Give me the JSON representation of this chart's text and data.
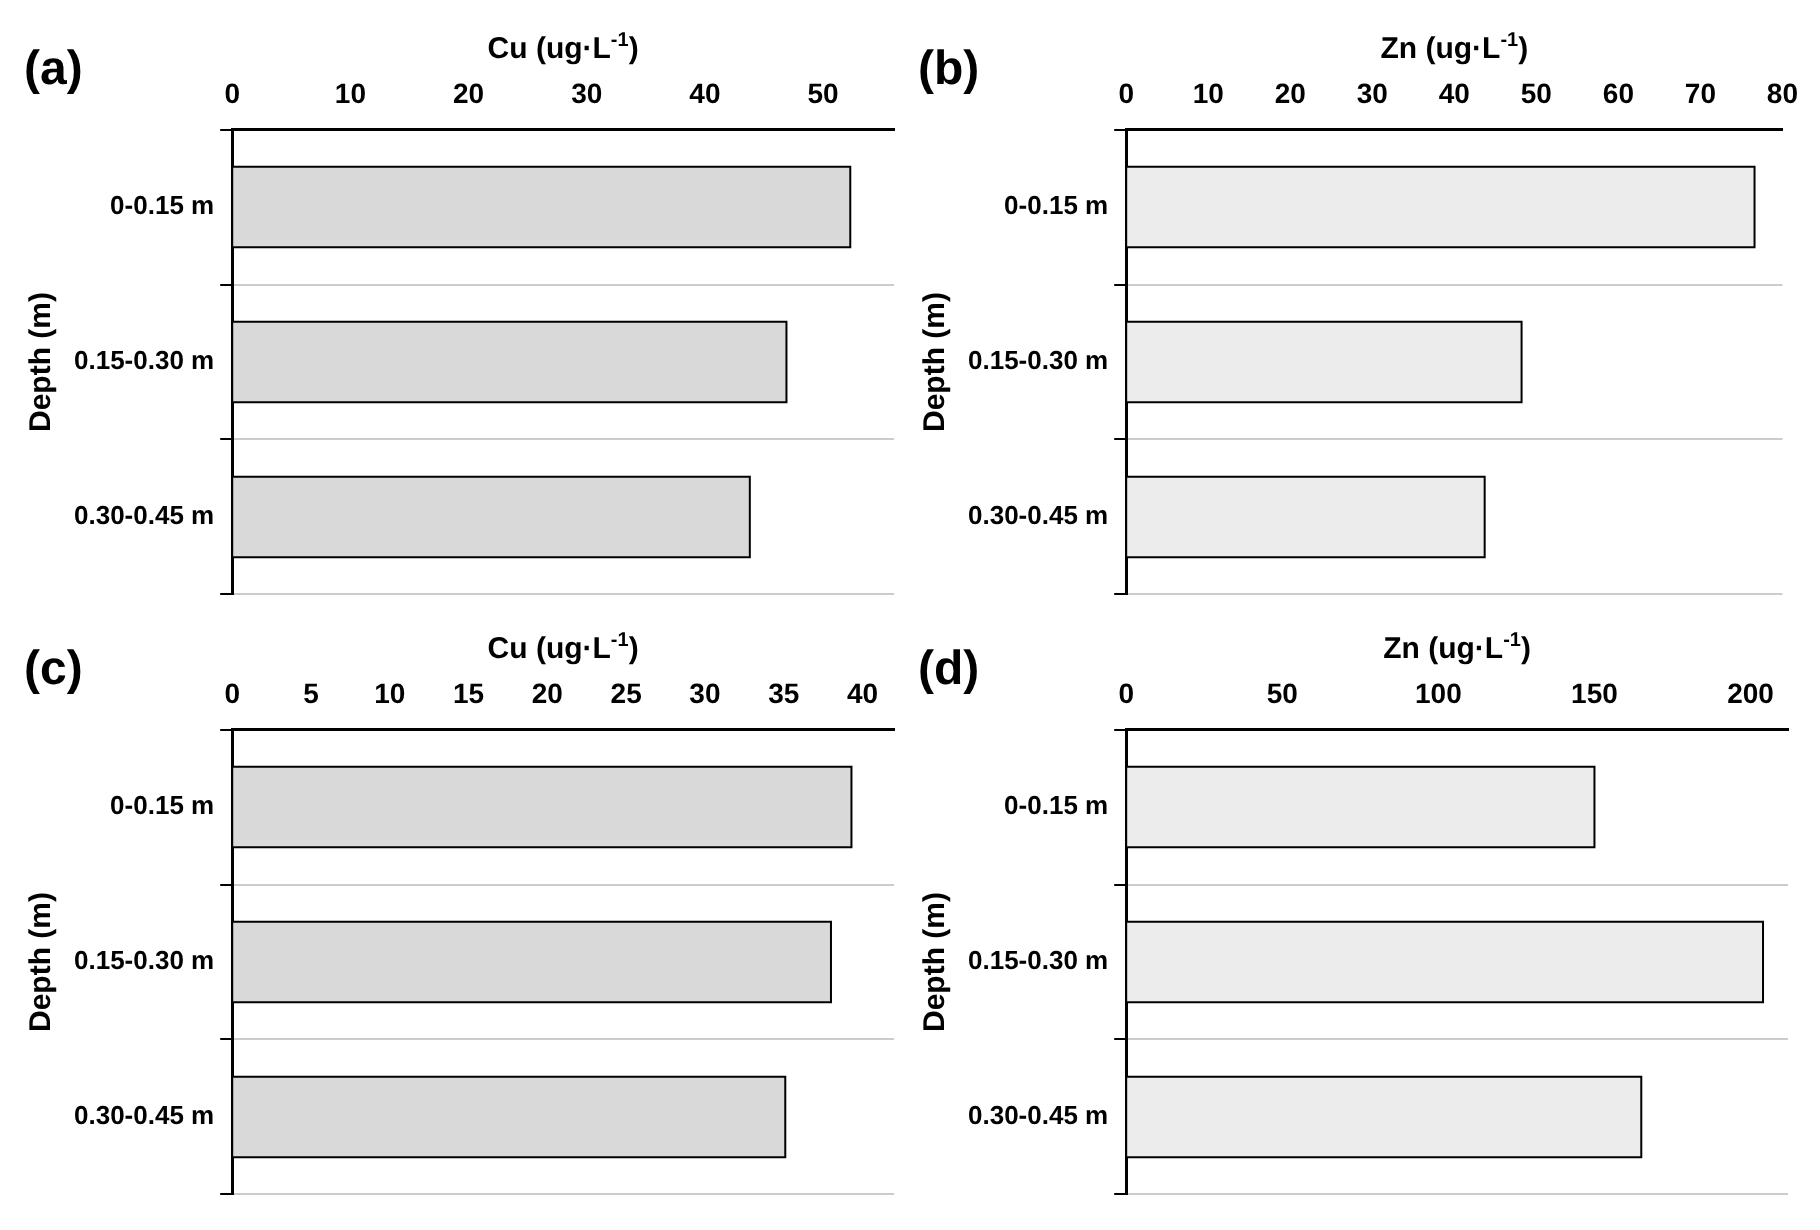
{
  "chart_data": [
    {
      "type": "bar",
      "orientation": "horizontal",
      "title": "(a)",
      "xlabel": "Cu (ug·L$^{-1}$)",
      "ylabel": "Depth (m)",
      "categories": [
        "0-0.15 m",
        "0.15-0.30 m",
        "0.30-0.45 m"
      ],
      "values": [
        52.3,
        46.9,
        43.8
      ],
      "color": "#d9d9d9",
      "xlim": [
        0,
        56
      ],
      "xticks": [
        0,
        10,
        20,
        30,
        40,
        50
      ],
      "grid": "y",
      "legend": false
    },
    {
      "type": "bar",
      "orientation": "horizontal",
      "title": "(b)",
      "xlabel": "Zn (ug·L$^{-1}$)",
      "ylabel": "Depth (m)",
      "categories": [
        "0-0.15 m",
        "0.15-0.30 m",
        "0.30-0.45 m"
      ],
      "values": [
        76.6,
        48.2,
        43.7
      ],
      "color": "#ececec",
      "xlim": [
        0,
        80
      ],
      "xticks": [
        0,
        10,
        20,
        30,
        40,
        50,
        60,
        70,
        80
      ],
      "grid": "y",
      "legend": false
    },
    {
      "type": "bar",
      "orientation": "horizontal",
      "title": "(c)",
      "xlabel": "Cu (ug·L$^{-1}$)",
      "ylabel": "Depth (m)",
      "categories": [
        "0-0.15 m",
        "0.15-0.30 m",
        "0.30-0.45 m"
      ],
      "values": [
        39.3,
        38.0,
        35.1
      ],
      "color": "#d9d9d9",
      "xlim": [
        0,
        42
      ],
      "xticks": [
        0,
        5,
        10,
        15,
        20,
        25,
        30,
        35,
        40
      ],
      "grid": "y",
      "legend": false
    },
    {
      "type": "bar",
      "orientation": "horizontal",
      "title": "(d)",
      "xlabel": "Zn (ug·L$^{-1}$)",
      "ylabel": "Depth (m)",
      "categories": [
        "0-0.15 m",
        "0.15-0.30 m",
        "0.30-0.45 m"
      ],
      "values": [
        150,
        204,
        165
      ],
      "color": "#ececec",
      "xlim": [
        0,
        212
      ],
      "xticks": [
        0,
        50,
        100,
        150,
        200
      ],
      "grid": "y",
      "legend": false
    }
  ]
}
